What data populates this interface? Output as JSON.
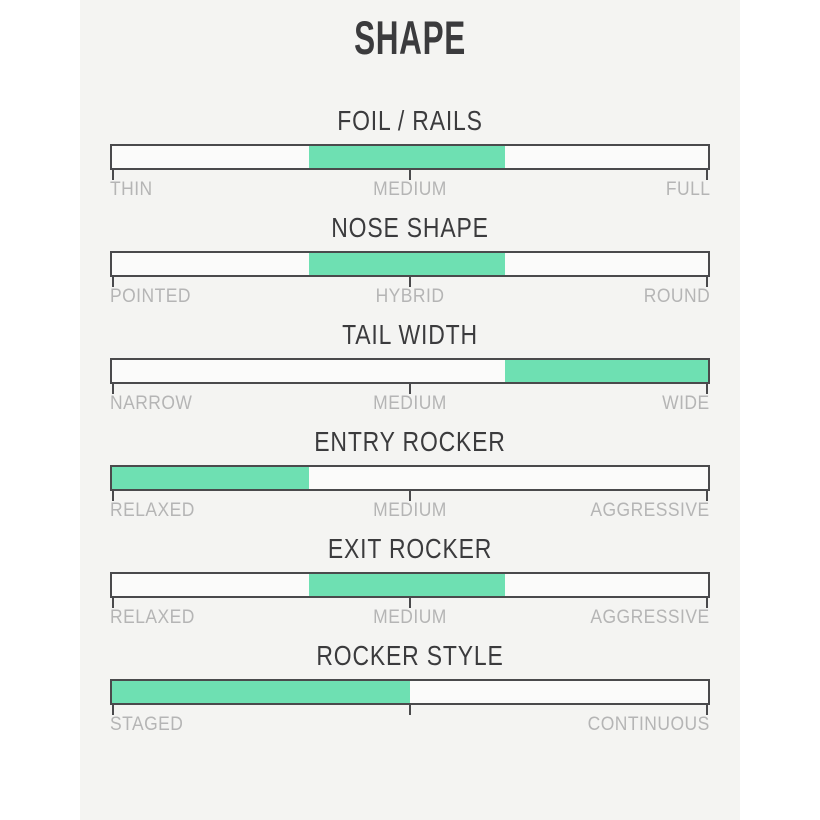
{
  "page": {
    "title": "SHAPE"
  },
  "colors": {
    "accent_green": "#6ee0b2",
    "bar_border": "#4a4a4c",
    "bar_fill": "#fbfbfa",
    "panel_background": "#f4f4f2",
    "page_background": "#ffffff",
    "title_text": "#3b3b3d",
    "label_text": "#b5b5b5"
  },
  "chart_data": {
    "type": "bar",
    "orientation": "horizontal",
    "title": "SHAPE",
    "axis_range_pct": [
      0,
      100
    ],
    "ticks_pct": [
      0,
      50,
      100
    ],
    "legend": "none",
    "sliders": [
      {
        "title": "FOIL / RAILS",
        "scale": [
          "THIN",
          "MEDIUM",
          "FULL"
        ],
        "range_pct": [
          33,
          66
        ]
      },
      {
        "title": "NOSE SHAPE",
        "scale": [
          "POINTED",
          "HYBRID",
          "ROUND"
        ],
        "range_pct": [
          33,
          66
        ]
      },
      {
        "title": "TAIL WIDTH",
        "scale": [
          "NARROW",
          "MEDIUM",
          "WIDE"
        ],
        "range_pct": [
          66,
          100
        ]
      },
      {
        "title": "ENTRY ROCKER",
        "scale": [
          "RELAXED",
          "MEDIUM",
          "AGGRESSIVE"
        ],
        "range_pct": [
          0,
          33
        ]
      },
      {
        "title": "EXIT ROCKER",
        "scale": [
          "RELAXED",
          "MEDIUM",
          "AGGRESSIVE"
        ],
        "range_pct": [
          33,
          66
        ]
      },
      {
        "title": "ROCKER STYLE",
        "scale": [
          "STAGED",
          "CONTINUOUS"
        ],
        "range_pct": [
          0,
          50
        ]
      }
    ]
  }
}
